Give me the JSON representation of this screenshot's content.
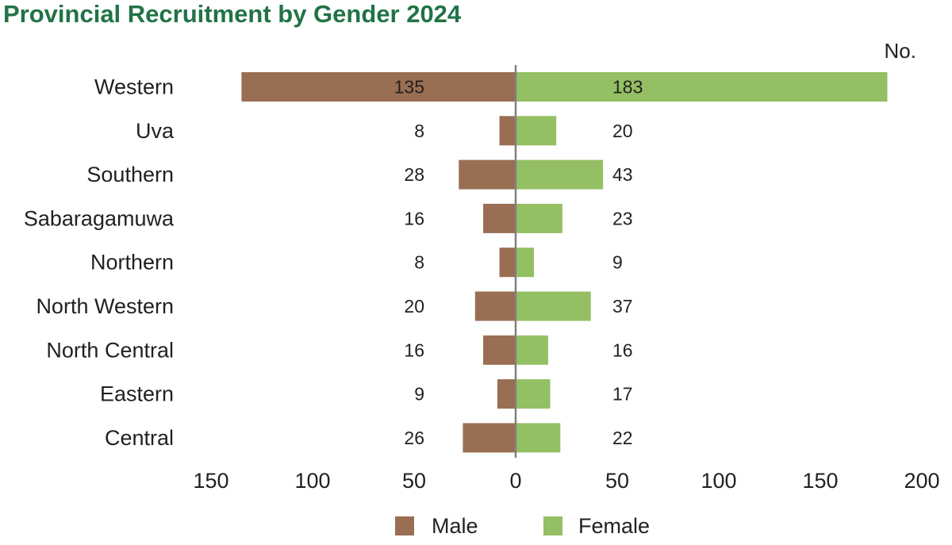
{
  "title": "Provincial Recruitment by Gender 2024",
  "colors": {
    "title": "#217346",
    "male": "#9a6e53",
    "female": "#94bf63",
    "axis": "#808080",
    "text": "#231f20",
    "inner_label": "#ffffff"
  },
  "chart_data": {
    "type": "bar",
    "orientation": "horizontal",
    "layout": "diverging",
    "title": "Provincial Recruitment by Gender 2024",
    "unit_label": "No.",
    "categories": [
      "Western",
      "Uva",
      "Southern",
      "Sabaragamuwa",
      "Northern",
      "North Western",
      "North Central",
      "Eastern",
      "Central"
    ],
    "series": [
      {
        "name": "Male",
        "values": [
          135,
          8,
          28,
          16,
          8,
          20,
          16,
          9,
          26
        ],
        "direction": "left"
      },
      {
        "name": "Female",
        "values": [
          183,
          20,
          43,
          23,
          9,
          37,
          16,
          17,
          22
        ],
        "direction": "right"
      }
    ],
    "x_ticks": [
      "150",
      "100",
      "50",
      "0",
      "50",
      "100",
      "150",
      "200"
    ],
    "xlim": [
      -150,
      200
    ],
    "grid": false,
    "legend": "bottom"
  }
}
